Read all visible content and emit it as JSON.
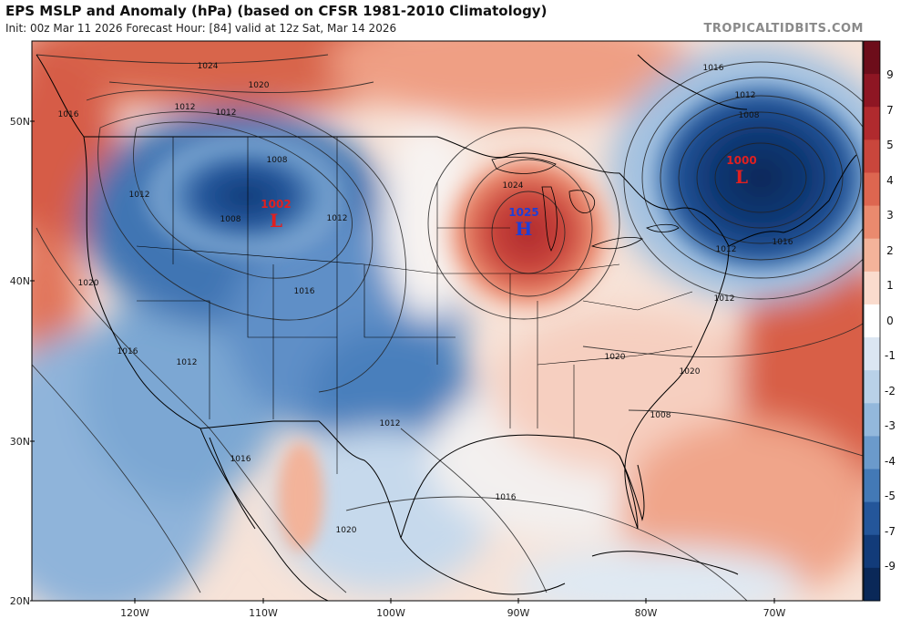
{
  "header": {
    "title": "EPS MSLP and Anomaly (hPa) (based on CFSR 1981-2010 Climatology)",
    "subtitle": "Init: 00z Mar 11 2026   Forecast Hour: [84]   valid at 12z Sat, Mar 14 2026",
    "brand": "TROPICALTIDBITS.COM"
  },
  "axes": {
    "lat_labels": [
      "50N",
      "40N",
      "30N",
      "20N"
    ],
    "lon_labels": [
      "120W",
      "110W",
      "100W",
      "90W",
      "80W",
      "70W"
    ]
  },
  "colorbar": {
    "ticks": [
      "9",
      "7",
      "5",
      "4",
      "3",
      "2",
      "1",
      "0",
      "-1",
      "-2",
      "-3",
      "-4",
      "-5",
      "-7",
      "-9"
    ],
    "colors": [
      "#6d0d1a",
      "#8e1623",
      "#b02a2e",
      "#c9463c",
      "#dd6650",
      "#ea8a6e",
      "#f3b39a",
      "#fadbcd",
      "#ffffff",
      "#dbe6f2",
      "#b9d1e8",
      "#93b8dc",
      "#6b9acb",
      "#4379b6",
      "#24569a",
      "#123b79",
      "#0a2858"
    ]
  },
  "pressure_centers": [
    {
      "type": "L",
      "value": "1002"
    },
    {
      "type": "H",
      "value": "1025"
    },
    {
      "type": "L",
      "value": "1000"
    }
  ],
  "contour_labels": [
    "1024",
    "1020",
    "1016",
    "1012",
    "1012",
    "1008",
    "1012",
    "1008",
    "1016",
    "1020",
    "1016",
    "1012",
    "1012",
    "1012",
    "1016",
    "1024",
    "1012",
    "1008",
    "1012",
    "1016",
    "1012",
    "1008",
    "1020",
    "1020",
    "1020",
    "1016",
    "1016"
  ]
}
